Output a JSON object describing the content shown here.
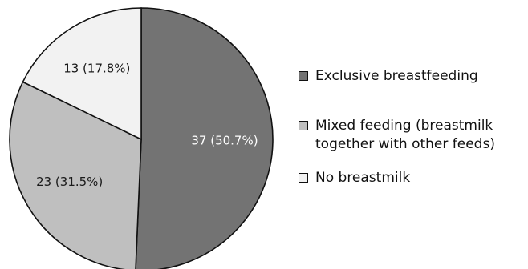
{
  "chart_data": {
    "type": "pie",
    "start_angle": "12 o'clock",
    "direction": "clockwise",
    "legend_position": "right",
    "slices": [
      {
        "name": "Exclusive breastfeeding",
        "label": "Exclusive breastfeeding",
        "value": 37,
        "percent": 50.7,
        "data_label": "37 (50.7%)",
        "color": "#737373",
        "text_color": "#ffffff"
      },
      {
        "name": "Mixed feeding",
        "label": "Mixed feeding (breastmilk together with other feeds)",
        "value": 23,
        "percent": 31.5,
        "data_label": "23 (31.5%)",
        "color": "#bfbfbf",
        "text_color": "#1a1a1a"
      },
      {
        "name": "No breastmilk",
        "label": "No breastmilk",
        "value": 13,
        "percent": 17.8,
        "data_label": "13 (17.8%)",
        "color": "#f2f2f2",
        "text_color": "#1a1a1a"
      }
    ]
  }
}
